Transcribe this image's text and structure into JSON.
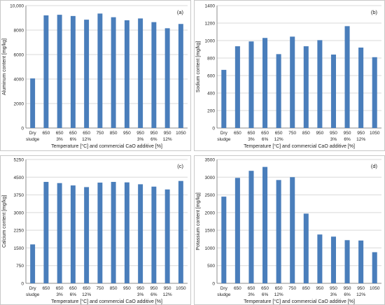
{
  "chart_data": [
    {
      "type": "bar",
      "panel_label": "(a)",
      "ylabel": "Aluminum content [mg/kg]",
      "xlabel": "Temperature [°C] and commercial CaO additive [%]",
      "categories": [
        [
          "Dry",
          "sludge"
        ],
        [
          "650",
          ""
        ],
        [
          "650",
          "3%"
        ],
        [
          "650",
          "6%"
        ],
        [
          "650",
          "12%"
        ],
        [
          "750",
          ""
        ],
        [
          "850",
          ""
        ],
        [
          "950",
          ""
        ],
        [
          "950",
          "3%"
        ],
        [
          "950",
          "6%"
        ],
        [
          "950",
          "12%"
        ],
        [
          "1050",
          ""
        ]
      ],
      "values": [
        4050,
        9200,
        9250,
        9150,
        8850,
        9350,
        9050,
        8800,
        8950,
        8650,
        8150,
        8500
      ],
      "ylim": [
        0,
        10000
      ],
      "yticks": [
        "0",
        "2000",
        "4000",
        "6000",
        "8000",
        "10,000"
      ],
      "grid": true,
      "bar_color": "#4a7ebb"
    },
    {
      "type": "bar",
      "panel_label": "(b)",
      "ylabel": "Sodium content [mg/kg]",
      "xlabel": "Temperature [°C] and commercial CaO additive [%]",
      "categories": [
        [
          "Dry",
          "sludge"
        ],
        [
          "650",
          ""
        ],
        [
          "650",
          "3%"
        ],
        [
          "650",
          "6%"
        ],
        [
          "650",
          "12%"
        ],
        [
          "750",
          ""
        ],
        [
          "850",
          ""
        ],
        [
          "950",
          ""
        ],
        [
          "950",
          "3%"
        ],
        [
          "950",
          "6%"
        ],
        [
          "950",
          "12%"
        ],
        [
          "1050",
          ""
        ]
      ],
      "values": [
        665,
        935,
        990,
        1030,
        845,
        1045,
        935,
        1005,
        840,
        1165,
        920,
        810
      ],
      "ylim": [
        0,
        1400
      ],
      "yticks": [
        "0",
        "200",
        "400",
        "600",
        "800",
        "1000",
        "1200",
        "1400"
      ],
      "grid": true,
      "bar_color": "#4a7ebb"
    },
    {
      "type": "bar",
      "panel_label": "(c)",
      "ylabel": "Calcium content [mg/kg]",
      "xlabel": "Temperature [°C] and commercial CaO additive [%]",
      "categories": [
        [
          "Dry",
          "sludge"
        ],
        [
          "650",
          ""
        ],
        [
          "650",
          "3%"
        ],
        [
          "650",
          "6%"
        ],
        [
          "650",
          "12%"
        ],
        [
          "750",
          ""
        ],
        [
          "850",
          ""
        ],
        [
          "950",
          ""
        ],
        [
          "950",
          "3%"
        ],
        [
          "950",
          "6%"
        ],
        [
          "950",
          "12%"
        ],
        [
          "1050",
          ""
        ]
      ],
      "values": [
        1650,
        4300,
        4250,
        4150,
        4080,
        4270,
        4300,
        4280,
        4200,
        4100,
        3980,
        4340
      ],
      "ylim": [
        0,
        5250
      ],
      "yticks": [
        "0",
        "750",
        "1500",
        "2250",
        "3000",
        "3750",
        "4500",
        "5250"
      ],
      "grid": true,
      "bar_color": "#4a7ebb"
    },
    {
      "type": "bar",
      "panel_label": "(d)",
      "ylabel": "Potassium content [mg/kg]",
      "xlabel": "Temperature [°C] and commercial CaO additive [%]",
      "categories": [
        [
          "Dry",
          "sludge"
        ],
        [
          "650",
          ""
        ],
        [
          "650",
          "3%"
        ],
        [
          "650",
          "6%"
        ],
        [
          "650",
          "12%"
        ],
        [
          "750",
          ""
        ],
        [
          "850",
          ""
        ],
        [
          "950",
          ""
        ],
        [
          "950",
          "3%"
        ],
        [
          "950",
          "6%"
        ],
        [
          "950",
          "12%"
        ],
        [
          "1050",
          ""
        ]
      ],
      "values": [
        2450,
        2980,
        3180,
        3290,
        2920,
        3000,
        1970,
        1380,
        1320,
        1220,
        1210,
        880
      ],
      "ylim": [
        0,
        3500
      ],
      "yticks": [
        "0",
        "500",
        "1000",
        "1500",
        "2000",
        "2500",
        "3000",
        "3500"
      ],
      "grid": true,
      "bar_color": "#4a7ebb"
    }
  ]
}
